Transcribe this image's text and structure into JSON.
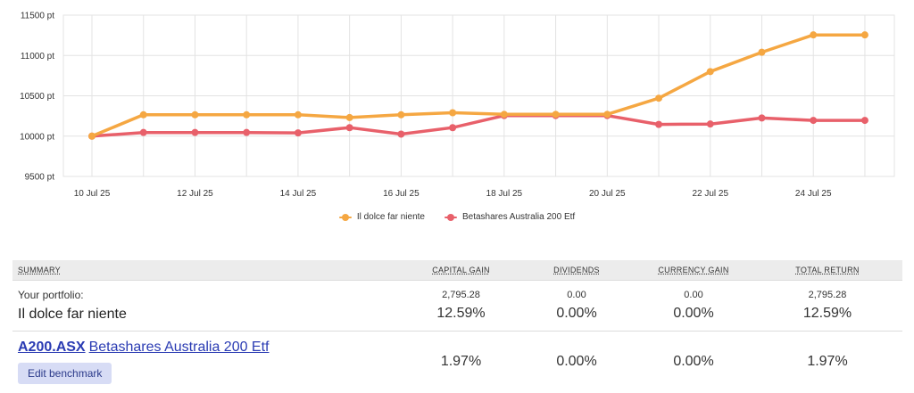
{
  "chart_data": {
    "type": "line",
    "ylim": [
      9500,
      11500
    ],
    "y_ticks": [
      "9500 pt",
      "10000 pt",
      "10500 pt",
      "11000 pt",
      "11500 pt"
    ],
    "y_tick_values": [
      9500,
      10000,
      10500,
      11000,
      11500
    ],
    "x_dates": [
      "10 Jul 25",
      "11 Jul 25",
      "12 Jul 25",
      "13 Jul 25",
      "14 Jul 25",
      "15 Jul 25",
      "16 Jul 25",
      "17 Jul 25",
      "18 Jul 25",
      "19 Jul 25",
      "20 Jul 25",
      "21 Jul 25",
      "22 Jul 25",
      "23 Jul 25",
      "24 Jul 25",
      "25 Jul 25"
    ],
    "x_tick_labels": [
      "10 Jul 25",
      "12 Jul 25",
      "14 Jul 25",
      "16 Jul 25",
      "18 Jul 25",
      "20 Jul 25",
      "22 Jul 25",
      "24 Jul 25"
    ],
    "grid": true,
    "legend_position": "bottom-center",
    "series": [
      {
        "name": "Il dolce far niente",
        "color": "#f5a742",
        "values": [
          10000,
          10265,
          10265,
          10265,
          10265,
          10230,
          10265,
          10290,
          10270,
          10270,
          10270,
          10470,
          10800,
          11040,
          11255,
          11255
        ]
      },
      {
        "name": "Betashares Australia 200 Etf",
        "color": "#e8606a",
        "values": [
          10000,
          10045,
          10045,
          10045,
          10040,
          10105,
          10025,
          10105,
          10255,
          10255,
          10255,
          10145,
          10150,
          10225,
          10195,
          10195
        ]
      }
    ]
  },
  "legend": {
    "item1": "Il dolce far niente",
    "item2": "Betashares Australia 200 Etf",
    "color1": "#f5a742",
    "color2": "#e8606a"
  },
  "summary": {
    "headers": {
      "summary": "SUMMARY",
      "capital_gain": "CAPITAL GAIN",
      "dividends": "DIVIDENDS",
      "currency_gain": "CURRENCY GAIN",
      "total_return": "TOTAL RETURN"
    },
    "portfolio": {
      "label": "Your portfolio:",
      "name": "Il dolce far niente",
      "capital_gain_amount": "2,795.28",
      "capital_gain_pct": "12.59%",
      "dividends_amount": "0.00",
      "dividends_pct": "0.00%",
      "currency_gain_amount": "0.00",
      "currency_gain_pct": "0.00%",
      "total_return_amount": "2,795.28",
      "total_return_pct": "12.59%"
    },
    "benchmark": {
      "code": "A200.ASX",
      "name": "Betashares Australia 200 Etf",
      "edit_label": "Edit benchmark",
      "capital_gain_pct": "1.97%",
      "dividends_pct": "0.00%",
      "currency_gain_pct": "0.00%",
      "total_return_pct": "1.97%"
    }
  }
}
